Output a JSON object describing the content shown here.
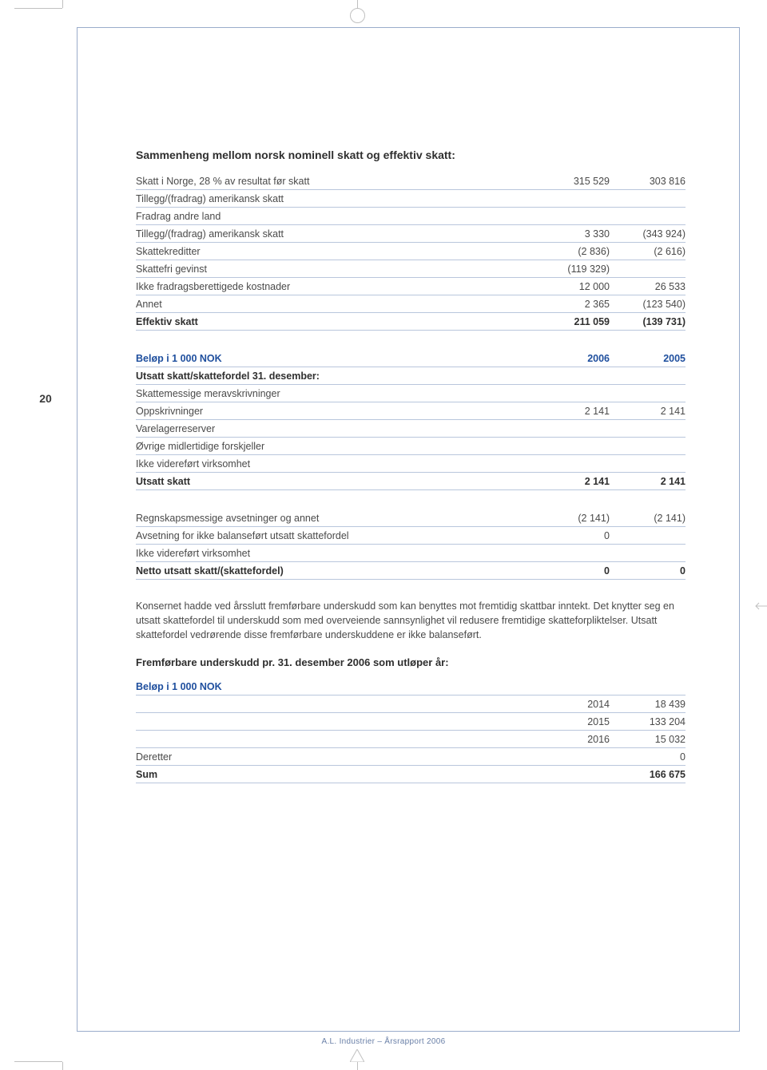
{
  "page_number": "20",
  "section1_title": "Sammenheng mellom norsk nominell skatt og effektiv skatt:",
  "table1": {
    "rows": [
      {
        "label": "Skatt i Norge, 28 % av resultat før skatt",
        "c1": "315 529",
        "c2": "303 816"
      },
      {
        "label": "Tillegg/(fradrag) amerikansk skatt",
        "c1": "",
        "c2": ""
      },
      {
        "label": "Fradrag andre land",
        "c1": "",
        "c2": ""
      },
      {
        "label": "Tillegg/(fradrag) amerikansk skatt",
        "c1": "3 330",
        "c2": "(343 924)"
      },
      {
        "label": "Skattekreditter",
        "c1": "(2 836)",
        "c2": "(2 616)"
      },
      {
        "label": "Skattefri gevinst",
        "c1": "(119 329)",
        "c2": ""
      },
      {
        "label": "Ikke fradragsberettigede kostnader",
        "c1": "12 000",
        "c2": "26 533"
      },
      {
        "label": "Annet",
        "c1": "2 365",
        "c2": "(123 540)"
      },
      {
        "label": "Effektiv skatt",
        "c1": "211 059",
        "c2": "(139 731)",
        "bold": true
      }
    ]
  },
  "table2": {
    "header": {
      "label": "Beløp i 1 000 NOK",
      "c1": "2006",
      "c2": "2005"
    },
    "rows": [
      {
        "label": "Utsatt skatt/skattefordel 31. desember:",
        "c1": "",
        "c2": "",
        "bold": true
      },
      {
        "label": "Skattemessige meravskrivninger",
        "c1": "",
        "c2": ""
      },
      {
        "label": "Oppskrivninger",
        "c1": "2 141",
        "c2": "2 141"
      },
      {
        "label": "Varelagerreserver",
        "c1": "",
        "c2": ""
      },
      {
        "label": "Øvrige midlertidige forskjeller",
        "c1": "",
        "c2": ""
      },
      {
        "label": "Ikke videreført virksomhet",
        "c1": "",
        "c2": ""
      },
      {
        "label": "Utsatt skatt",
        "c1": "2 141",
        "c2": "2 141",
        "bold": true
      }
    ]
  },
  "table3": {
    "rows": [
      {
        "label": "Regnskapsmessige avsetninger og annet",
        "c1": "(2 141)",
        "c2": "(2 141)"
      },
      {
        "label": "Avsetning for ikke balanseført utsatt skattefordel",
        "c1": "0",
        "c2": ""
      },
      {
        "label": "Ikke videreført virksomhet",
        "c1": "",
        "c2": ""
      },
      {
        "label": "Netto utsatt skatt/(skattefordel)",
        "c1": "0",
        "c2": "0",
        "bold": true
      }
    ]
  },
  "body_paragraph": "Konsernet hadde ved årsslutt fremførbare underskudd som kan benyttes mot fremtidig skattbar inntekt. Det knytter seg en utsatt skattefordel til underskudd som med overveiende sannsynlighet vil redusere fremtidige skatteforpliktelser. Utsatt skattefordel vedrørende disse fremførbare underskuddene er ikke balanseført.",
  "section4_title": "Fremførbare underskudd pr. 31. desember 2006 som utløper år:",
  "table4": {
    "header": {
      "label": "Beløp i 1 000 NOK"
    },
    "rows": [
      {
        "label": "",
        "c1": "2014",
        "c2": "18 439"
      },
      {
        "label": "",
        "c1": "2015",
        "c2": "133 204"
      },
      {
        "label": "",
        "c1": "2016",
        "c2": "15 032"
      },
      {
        "label": "Deretter",
        "c1": "",
        "c2": "0"
      },
      {
        "label": "Sum",
        "c1": "",
        "c2": "166 675",
        "bold": true
      }
    ]
  },
  "footer_text": "A.L. Industrier – Årsrapport 2006",
  "colors": {
    "frame_border": "#9aaccb",
    "row_border": "#b9c6dc",
    "header_blue": "#1f4f9e",
    "body_text": "#4a4a4a",
    "footer_text": "#6a80a8",
    "crop_mark": "#c0c0c0"
  }
}
